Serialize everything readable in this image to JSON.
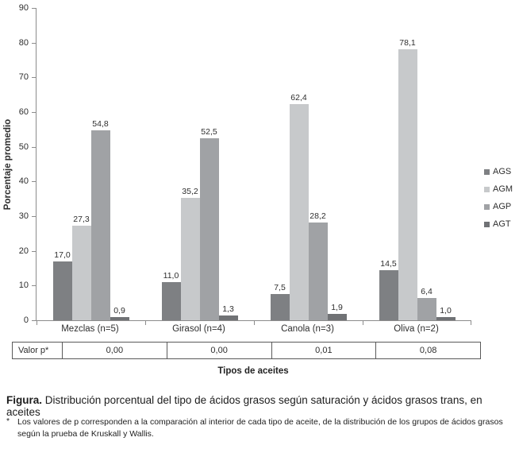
{
  "chart_data": {
    "type": "bar",
    "title": "",
    "ylabel": "Porcentaje promedio",
    "xlabel": "Tipos de aceites",
    "ylim": [
      0,
      90
    ],
    "yticks": [
      0,
      10,
      20,
      30,
      40,
      50,
      60,
      70,
      80,
      90
    ],
    "grid": false,
    "legend_position": "right",
    "categories": [
      "Mezclas (n=5)",
      "Girasol (n=4)",
      "Canola (n=3)",
      "Oliva (n=2)"
    ],
    "series": [
      {
        "name": "AGS",
        "color": "#7e8083",
        "values": [
          17.0,
          11.0,
          7.5,
          14.5
        ],
        "labels": [
          "17,0",
          "11,0",
          "7,5",
          "14,5"
        ]
      },
      {
        "name": "AGM",
        "color": "#c7c9cb",
        "values": [
          27.3,
          35.2,
          62.4,
          78.1
        ],
        "labels": [
          "27,3",
          "35,2",
          "62,4",
          "78,1"
        ]
      },
      {
        "name": "AGP",
        "color": "#a0a2a5",
        "values": [
          54.8,
          52.5,
          28.2,
          6.4
        ],
        "labels": [
          "54,8",
          "52,5",
          "28,2",
          "6,4"
        ]
      },
      {
        "name": "AGT",
        "color": "#707275",
        "values": [
          0.9,
          1.3,
          1.9,
          1.0
        ],
        "labels": [
          "0,9",
          "1,3",
          "1,9",
          "1,0"
        ]
      }
    ],
    "axis_color": "#8c8c8c"
  },
  "p_table": {
    "label": "Valor p*",
    "values": [
      "0,00",
      "0,00",
      "0,01",
      "0,08"
    ]
  },
  "caption": {
    "label": "Figura.",
    "text": "Distribución porcentual del tipo de ácidos grasos según saturación y ácidos grasos trans, en aceites"
  },
  "footnote": {
    "marker": "*",
    "text": "Los valores de p corresponden a la comparación al interior de cada tipo de aceite, de la distribución de los grupos de ácidos grasos según la prueba de Kruskall y Wallis."
  }
}
